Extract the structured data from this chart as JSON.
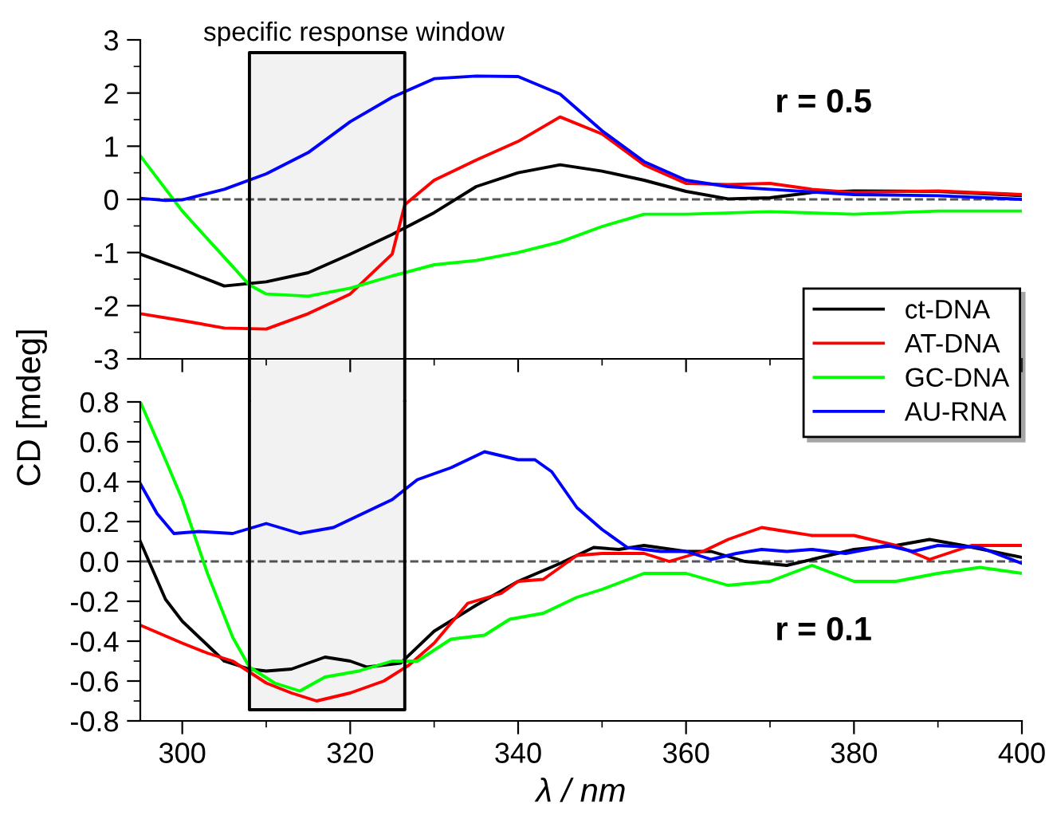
{
  "chart_data": [
    {
      "type": "line",
      "title": null,
      "ylabel": "CD [mdeg]",
      "xlim": [
        295,
        400
      ],
      "ylim": [
        -3,
        3
      ],
      "xticks": [
        300,
        320,
        340,
        360,
        380,
        400
      ],
      "yticks": [
        -3,
        -2,
        -1,
        0,
        1,
        2,
        3
      ],
      "tick_labels": "y",
      "legend": "right",
      "grid": false,
      "line_style": "solid",
      "annotations": [
        "r = 0.5"
      ],
      "ref_lines": [
        {
          "axis": "y",
          "value": 0,
          "label": null,
          "color": "#555555",
          "line_style": "dashed"
        }
      ],
      "bands": [
        {
          "axis": "x",
          "from": 308,
          "to": 326.5,
          "label": "specific response window",
          "color": "#000000"
        }
      ],
      "series": [
        {
          "name": "ct-DNA",
          "color": "#000000",
          "x": [
            295,
            300,
            305,
            310,
            315,
            320,
            325,
            330,
            335,
            340,
            345,
            350,
            355,
            360,
            365,
            370,
            375,
            380,
            390,
            400
          ],
          "values": [
            -1.03,
            -1.32,
            -1.63,
            -1.55,
            -1.38,
            -1.03,
            -0.66,
            -0.25,
            0.24,
            0.5,
            0.65,
            0.53,
            0.36,
            0.15,
            0.01,
            0.03,
            0.13,
            0.16,
            0.15,
            0.07
          ]
        },
        {
          "name": "AT-DNA",
          "color": "#ff0000",
          "x": [
            295,
            300,
            305,
            310,
            315,
            320,
            325,
            326.5,
            330,
            335,
            340,
            345,
            350,
            355,
            360,
            365,
            370,
            375,
            380,
            390,
            400
          ],
          "values": [
            -2.15,
            -2.28,
            -2.42,
            -2.44,
            -2.15,
            -1.78,
            -1.03,
            -0.1,
            0.36,
            0.74,
            1.09,
            1.55,
            1.23,
            0.65,
            0.3,
            0.28,
            0.3,
            0.19,
            0.13,
            0.16,
            0.09
          ]
        },
        {
          "name": "GC-DNA",
          "color": "#00ff00",
          "x": [
            295,
            300,
            305,
            308,
            310,
            315,
            320,
            325,
            330,
            335,
            340,
            345,
            350,
            355,
            360,
            370,
            380,
            390,
            400
          ],
          "values": [
            0.82,
            -0.22,
            -1.09,
            -1.61,
            -1.78,
            -1.82,
            -1.67,
            -1.44,
            -1.23,
            -1.15,
            -1.0,
            -0.8,
            -0.51,
            -0.28,
            -0.28,
            -0.23,
            -0.28,
            -0.22,
            -0.22
          ]
        },
        {
          "name": "AU-RNA",
          "color": "#0000ff",
          "x": [
            295,
            298,
            300,
            305,
            310,
            315,
            320,
            325,
            330,
            335,
            340,
            345,
            350,
            355,
            360,
            365,
            370,
            380,
            390,
            400
          ],
          "values": [
            0.02,
            -0.02,
            -0.01,
            0.19,
            0.48,
            0.88,
            1.46,
            1.92,
            2.27,
            2.32,
            2.31,
            1.98,
            1.29,
            0.71,
            0.36,
            0.24,
            0.19,
            0.09,
            0.07,
            0.0
          ]
        }
      ]
    },
    {
      "type": "line",
      "xlabel": "λ / nm",
      "xlim": [
        295,
        400
      ],
      "ylim": [
        -0.8,
        0.8
      ],
      "xticks": [
        300,
        320,
        340,
        360,
        380,
        400
      ],
      "yticks": [
        -0.8,
        -0.6,
        -0.4,
        -0.2,
        {
          "value": 0,
          "label": "0.0"
        },
        0.2,
        0.4,
        0.6,
        0.8
      ],
      "grid": false,
      "line_style": "solid",
      "annotations": [
        "r = 0.1"
      ],
      "ref_lines": [
        {
          "axis": "y",
          "value": 0,
          "label": null,
          "color": "#555555",
          "line_style": "dashed"
        }
      ],
      "bands": [
        {
          "axis": "x",
          "from": 308,
          "to": 326.5,
          "label": null,
          "color": "#000000"
        }
      ],
      "series": [
        {
          "color": "#000000",
          "x": [
            295,
            298,
            300,
            303,
            305,
            308,
            310,
            313,
            317,
            320,
            322,
            326,
            330,
            335,
            340,
            345,
            349,
            352,
            355,
            360,
            363,
            367,
            372,
            375,
            380,
            385,
            389,
            393,
            400
          ],
          "values": [
            0.1,
            -0.19,
            -0.3,
            -0.42,
            -0.5,
            -0.54,
            -0.55,
            -0.54,
            -0.48,
            -0.5,
            -0.53,
            -0.51,
            -0.35,
            -0.22,
            -0.1,
            -0.01,
            0.07,
            0.06,
            0.08,
            0.05,
            0.05,
            0.0,
            -0.02,
            0.01,
            0.06,
            0.08,
            0.11,
            0.08,
            0.02
          ]
        },
        {
          "color": "#ff0000",
          "x": [
            295,
            300,
            303,
            306,
            310,
            313,
            316,
            320,
            324,
            327,
            330,
            334,
            338,
            340,
            343,
            347,
            350,
            355,
            358,
            362,
            365,
            369,
            372,
            375,
            380,
            385,
            389,
            394,
            400
          ],
          "values": [
            -0.32,
            -0.41,
            -0.46,
            -0.5,
            -0.61,
            -0.66,
            -0.7,
            -0.66,
            -0.6,
            -0.52,
            -0.41,
            -0.21,
            -0.16,
            -0.1,
            -0.09,
            0.03,
            0.04,
            0.04,
            0.0,
            0.05,
            0.11,
            0.17,
            0.15,
            0.13,
            0.13,
            0.08,
            0.01,
            0.08,
            0.08
          ]
        },
        {
          "color": "#00ff00",
          "x": [
            295,
            298,
            300,
            303,
            306,
            308,
            311,
            314,
            317,
            321,
            325,
            328,
            332,
            336,
            339,
            343,
            347,
            350,
            355,
            360,
            365,
            370,
            375,
            380,
            385,
            390,
            395,
            400
          ],
          "values": [
            0.8,
            0.51,
            0.31,
            -0.06,
            -0.38,
            -0.53,
            -0.61,
            -0.65,
            -0.58,
            -0.55,
            -0.5,
            -0.5,
            -0.39,
            -0.37,
            -0.29,
            -0.26,
            -0.18,
            -0.14,
            -0.06,
            -0.06,
            -0.12,
            -0.1,
            -0.02,
            -0.1,
            -0.1,
            -0.06,
            -0.03,
            -0.06
          ]
        },
        {
          "color": "#0000ff",
          "x": [
            295,
            297,
            299,
            302,
            306,
            310,
            314,
            318,
            322,
            325,
            328,
            332,
            336,
            340,
            342,
            344,
            347,
            350,
            353,
            357,
            360,
            363,
            366,
            369,
            372,
            375,
            379,
            384,
            387,
            390,
            395,
            400
          ],
          "values": [
            0.39,
            0.24,
            0.14,
            0.15,
            0.14,
            0.19,
            0.14,
            0.17,
            0.25,
            0.31,
            0.41,
            0.47,
            0.55,
            0.51,
            0.51,
            0.45,
            0.27,
            0.16,
            0.07,
            0.05,
            0.05,
            0.01,
            0.04,
            0.06,
            0.05,
            0.06,
            0.04,
            0.08,
            0.05,
            0.08,
            0.07,
            -0.01
          ]
        }
      ]
    }
  ]
}
